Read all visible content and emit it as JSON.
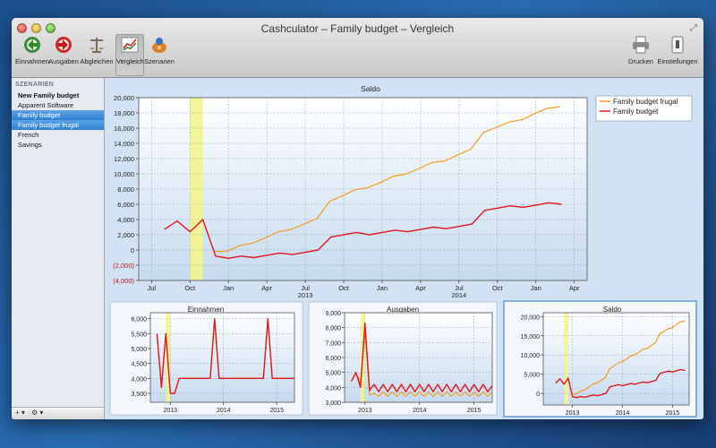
{
  "window": {
    "title": "Cashculator – Family budget – Vergleich"
  },
  "toolbar": {
    "items": [
      {
        "label": "Einnahmen",
        "icon": "income-icon"
      },
      {
        "label": "Ausgaben",
        "icon": "expenses-icon"
      },
      {
        "label": "Abgleichen",
        "icon": "balance-scale-icon"
      },
      {
        "label": "Vergleich",
        "icon": "compare-icon"
      },
      {
        "label": "Szenarien",
        "icon": "scenarios-icon"
      }
    ],
    "print_label": "Drucken",
    "settings_label": "Einstellungen"
  },
  "sidebar": {
    "header": "SZENARIEN",
    "items": [
      {
        "label": "New Family budget"
      },
      {
        "label": "Apparent Software"
      },
      {
        "label": "Family budget"
      },
      {
        "label": "Family budget frugal"
      },
      {
        "label": "French"
      },
      {
        "label": "Savings"
      }
    ],
    "add_label": "+ ▾",
    "gear_label": "⚙ ▾"
  },
  "colors": {
    "frugal": "#f39a1f",
    "budget": "#e2161c",
    "highlight": "#f3f58c"
  },
  "chart_data": [
    {
      "type": "line",
      "title": "Saldo",
      "months": [
        0,
        1,
        2,
        3,
        4,
        5,
        6,
        7,
        8,
        9,
        10,
        11,
        12,
        13,
        14,
        15,
        16,
        17,
        18,
        19,
        20,
        21,
        22,
        23,
        24,
        25,
        26,
        27,
        28,
        29,
        30,
        31
      ],
      "ylim": [
        -4000,
        20000
      ],
      "yticks": [
        "20,000",
        "18,000",
        "16,000",
        "14,000",
        "12,000",
        "10,000",
        "8,000",
        "6,000",
        "4,000",
        "2,000",
        "0",
        "(2,000)",
        "(4,000)"
      ],
      "xticks": [
        {
          "m": 0,
          "label": "Jul"
        },
        {
          "m": 3,
          "label": "Oct"
        },
        {
          "m": 6,
          "label": "Jan"
        },
        {
          "m": 9,
          "label": "Apr"
        },
        {
          "m": 12,
          "label": "Jul"
        },
        {
          "m": 15,
          "label": "Oct"
        },
        {
          "m": 18,
          "label": "Jan"
        },
        {
          "m": 21,
          "label": "Apr"
        },
        {
          "m": 24,
          "label": "Jul"
        },
        {
          "m": 27,
          "label": "Oct"
        },
        {
          "m": 30,
          "label": "Jan"
        },
        {
          "m": 33,
          "label": "Apr"
        }
      ],
      "year_labels": [
        {
          "m": 12,
          "label": "2013"
        },
        {
          "m": 24,
          "label": "2014"
        }
      ],
      "highlight": [
        3,
        4
      ],
      "legend": [
        "Family budget frugal",
        "Family budget"
      ],
      "series": [
        {
          "name": "Family budget frugal",
          "m_start": 4.9,
          "values": [
            -200,
            -150,
            600,
            900,
            1600,
            2400,
            2700,
            3400,
            4100,
            6400,
            7100,
            7900,
            8200,
            8900,
            9700,
            10000,
            10700,
            11500,
            11700,
            12500,
            13200,
            15400,
            16100,
            16800,
            17100,
            17900,
            18600,
            18800
          ]
        },
        {
          "name": "Family budget",
          "m_start": 1,
          "values": [
            2700,
            3800,
            2400,
            4000,
            -800,
            -1100,
            -800,
            -1000,
            -700,
            -400,
            -600,
            -300,
            0,
            1700,
            2000,
            2300,
            2000,
            2300,
            2600,
            2400,
            2700,
            3000,
            2800,
            3100,
            3400,
            5200,
            5500,
            5800,
            5600,
            5900,
            6200,
            6000
          ]
        }
      ]
    },
    {
      "type": "line",
      "title": "Einnahmen",
      "ylim": [
        3200,
        6200
      ],
      "yticks": [
        "6,000",
        "5,500",
        "5,000",
        "4,500",
        "4,000",
        "3,500"
      ],
      "xticks": [
        {
          "m": 3,
          "label": "2013"
        },
        {
          "m": 15,
          "label": "2014"
        },
        {
          "m": 27,
          "label": "2015"
        }
      ],
      "highlight": [
        2,
        3
      ],
      "series": [
        {
          "name": "Family budget frugal",
          "m_start": 0,
          "values": [
            5500,
            3700,
            5500,
            3500,
            3500,
            4000,
            4000,
            4000,
            4000,
            4000,
            4000,
            4000,
            4000,
            6000,
            4000,
            4000,
            4000,
            4000,
            4000,
            4000,
            4000,
            4000,
            4000,
            4000,
            4000,
            6000,
            4000,
            4000,
            4000,
            4000,
            4000,
            4000
          ]
        },
        {
          "name": "Family budget",
          "m_start": 0,
          "values": [
            5500,
            3700,
            5500,
            3500,
            3500,
            4000,
            4000,
            4000,
            4000,
            4000,
            4000,
            4000,
            4000,
            6000,
            4000,
            4000,
            4000,
            4000,
            4000,
            4000,
            4000,
            4000,
            4000,
            4000,
            4000,
            6000,
            4000,
            4000,
            4000,
            4000,
            4000,
            4000
          ]
        }
      ]
    },
    {
      "type": "line",
      "title": "Ausgaben",
      "ylim": [
        3000,
        9000
      ],
      "yticks": [
        "9,000",
        "8,000",
        "7,000",
        "6,000",
        "5,000",
        "4,000",
        "3,000"
      ],
      "xticks": [
        {
          "m": 3,
          "label": "2013"
        },
        {
          "m": 15,
          "label": "2014"
        },
        {
          "m": 27,
          "label": "2015"
        }
      ],
      "highlight": [
        2,
        3
      ],
      "series": [
        {
          "name": "Family budget frugal",
          "m_start": 0,
          "values": [
            4400,
            5000,
            4300,
            7800,
            3500,
            3600,
            3400,
            3700,
            3400,
            3700,
            3400,
            3700,
            3400,
            3700,
            3400,
            3700,
            3400,
            3700,
            3400,
            3700,
            3400,
            3700,
            3400,
            3700,
            3400,
            3700,
            3400,
            3700,
            3400,
            3700,
            3400,
            3700
          ]
        },
        {
          "name": "Family budget",
          "m_start": 0,
          "values": [
            4400,
            5000,
            4000,
            8300,
            3800,
            4200,
            3700,
            4200,
            3700,
            4200,
            3700,
            4200,
            3700,
            4200,
            3700,
            4200,
            3700,
            4200,
            3700,
            4200,
            3700,
            4200,
            3700,
            4200,
            3700,
            4200,
            3700,
            4200,
            3700,
            4200,
            3700,
            4100
          ]
        }
      ]
    },
    {
      "type": "line",
      "title": "Saldo",
      "ylim": [
        -3000,
        21000
      ],
      "yticks": [
        "20,000",
        "15,000",
        "10,000",
        "5,000",
        "0"
      ],
      "xticks": [
        {
          "m": 5,
          "label": "2013"
        },
        {
          "m": 17,
          "label": "2014"
        },
        {
          "m": 29,
          "label": "2015"
        }
      ],
      "highlight": [
        3,
        4
      ],
      "series": [
        {
          "name": "Family budget frugal",
          "m_start": 4.9,
          "values": [
            -200,
            -150,
            600,
            900,
            1600,
            2400,
            2700,
            3400,
            4100,
            6400,
            7100,
            7900,
            8200,
            8900,
            9700,
            10000,
            10700,
            11500,
            11700,
            12500,
            13200,
            15400,
            16100,
            16800,
            17100,
            17900,
            18600,
            18800
          ]
        },
        {
          "name": "Family budget",
          "m_start": 1,
          "values": [
            2700,
            3800,
            2400,
            4000,
            -800,
            -1100,
            -800,
            -1000,
            -700,
            -400,
            -600,
            -300,
            0,
            1700,
            2000,
            2300,
            2000,
            2300,
            2600,
            2400,
            2700,
            3000,
            2800,
            3100,
            3400,
            5200,
            5500,
            5800,
            5600,
            5900,
            6200,
            6000
          ]
        }
      ]
    }
  ]
}
